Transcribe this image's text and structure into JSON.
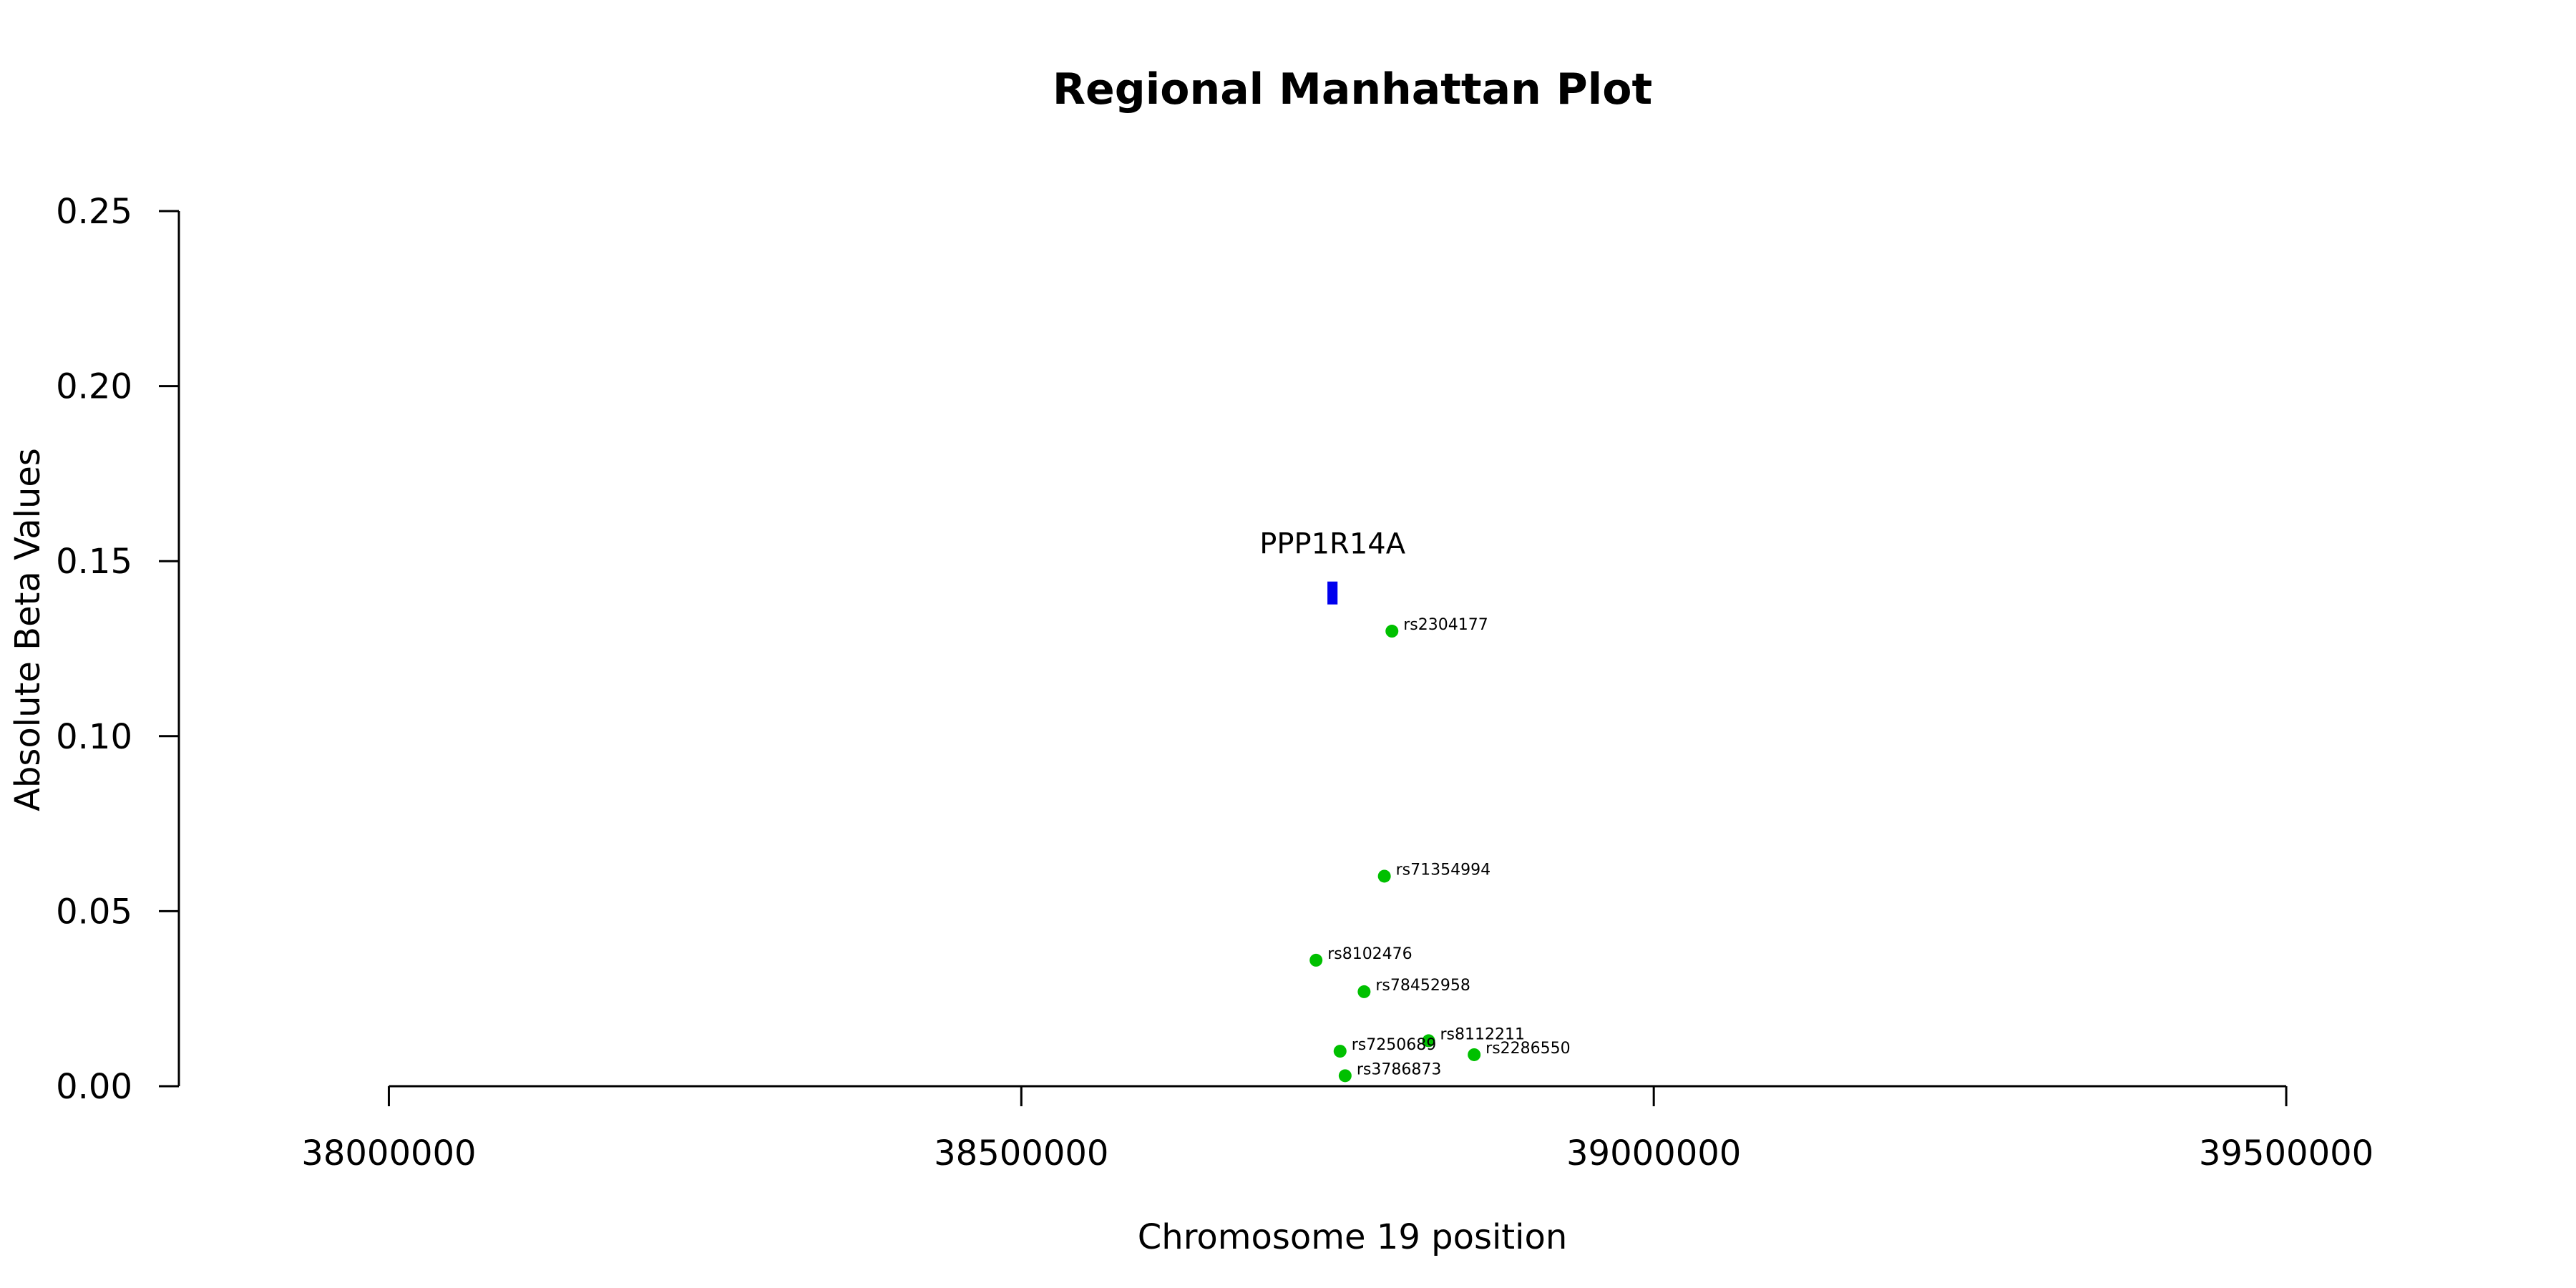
{
  "chart_data": {
    "type": "scatter",
    "title": "Regional Manhattan Plot",
    "xlabel": "Chromosome 19 position",
    "ylabel": "Absolute Beta Values",
    "xlim": [
      37735000,
      39780000
    ],
    "ylim": [
      0,
      0.25
    ],
    "xticks": [
      38000000,
      38500000,
      39000000,
      39500000
    ],
    "xtick_labels": [
      "38000000",
      "38500000",
      "39000000",
      "39500000"
    ],
    "yticks": [
      0,
      0.05,
      0.1,
      0.15,
      0.2,
      0.25
    ],
    "ytick_labels": [
      "0.00",
      "0.05",
      "0.10",
      "0.15",
      "0.20",
      "0.25"
    ],
    "grid": false,
    "point_color": "#00c000",
    "gene_color": "#0000ee",
    "gene": {
      "name": "PPP1R14A",
      "start": 38742000,
      "end": 38750000,
      "y": 0.1409,
      "label_y": 0.155
    },
    "points": [
      {
        "label": "rs2304177",
        "x": 38793000,
        "y": 0.13
      },
      {
        "label": "rs71354994",
        "x": 38787000,
        "y": 0.06
      },
      {
        "label": "rs8102476",
        "x": 38733000,
        "y": 0.036
      },
      {
        "label": "rs78452958",
        "x": 38771000,
        "y": 0.027
      },
      {
        "label": "rs8112211",
        "x": 38822000,
        "y": 0.013
      },
      {
        "label": "rs7250689",
        "x": 38752000,
        "y": 0.01
      },
      {
        "label": "rs2286550",
        "x": 38858000,
        "y": 0.009
      },
      {
        "label": "rs3786873",
        "x": 38756000,
        "y": 0.003
      }
    ]
  }
}
